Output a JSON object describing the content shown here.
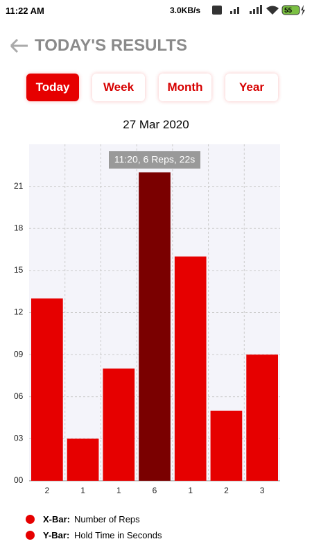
{
  "status_bar": {
    "time": "11:22 AM",
    "speed": "3.0KB/s",
    "battery": "55"
  },
  "header": {
    "title": "TODAY'S RESULTS"
  },
  "tabs": [
    "Today",
    "Week",
    "Month",
    "Year"
  ],
  "active_tab": 0,
  "date": "27 Mar 2020",
  "chart_data": {
    "type": "bar",
    "categories": [
      "2",
      "1",
      "1",
      "6",
      "1",
      "2",
      "3"
    ],
    "values": [
      13,
      3,
      8,
      22,
      16,
      5,
      9
    ],
    "color": "#e60000",
    "highlight_color": "#7a0000",
    "highlight_index": 3,
    "tooltip": "11:20, 6 Reps, 22s",
    "ylim": [
      0,
      24
    ],
    "yticks": [
      {
        "value": 0,
        "label": "00"
      },
      {
        "value": 3,
        "label": "03"
      },
      {
        "value": 6,
        "label": "06"
      },
      {
        "value": 9,
        "label": "09"
      },
      12,
      15,
      18,
      21
    ],
    "grid": true
  },
  "legend": [
    {
      "key": "X-Bar:",
      "text": "Number of Reps"
    },
    {
      "key": "Y-Bar:",
      "text": "Hold Time in Seconds"
    }
  ]
}
